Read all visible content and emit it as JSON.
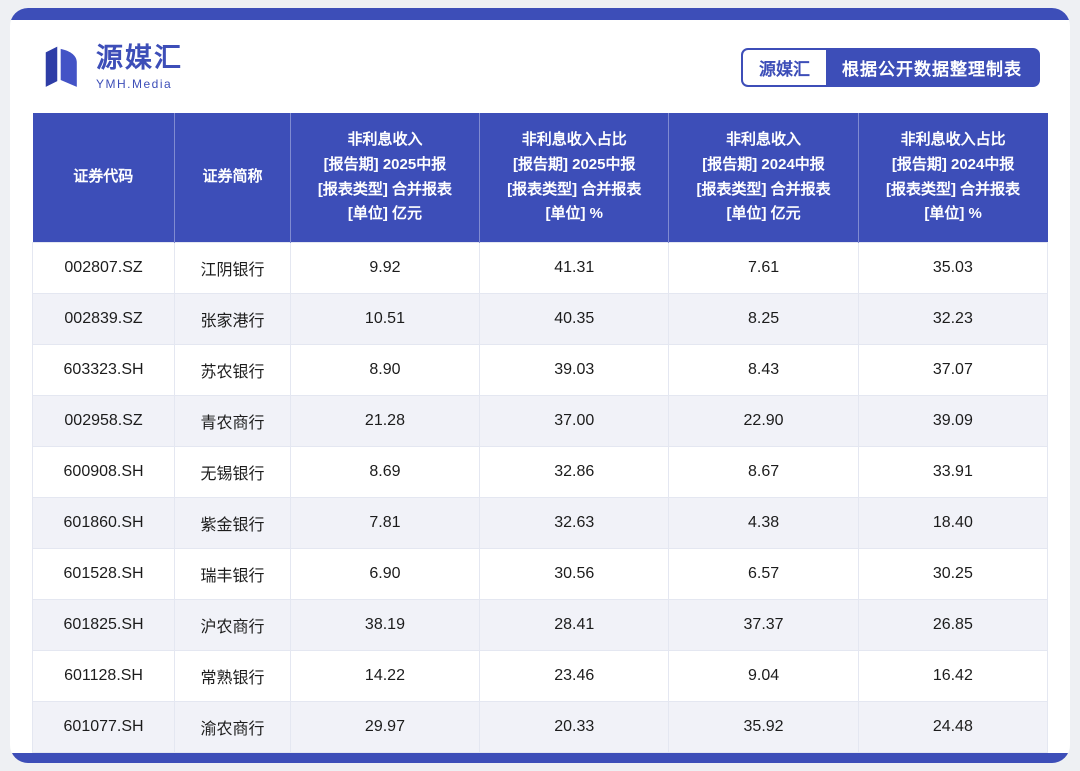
{
  "brand": {
    "name": "源媒汇",
    "subtitle": "YMH.Media"
  },
  "badge": {
    "label": "源媒汇",
    "text": "根据公开数据整理制表"
  },
  "colors": {
    "primary": "#3D4EB8",
    "row_alt": "#F1F2F8",
    "border": "#E4E7F1"
  },
  "chart_data": {
    "type": "table",
    "columns": [
      "证券代码",
      "证券简称",
      "非利息收入\n[报告期] 2025中报\n[报表类型] 合并报表\n[单位] 亿元",
      "非利息收入占比\n[报告期] 2025中报\n[报表类型] 合并报表\n[单位] %",
      "非利息收入\n[报告期] 2024中报\n[报表类型] 合并报表\n[单位] 亿元",
      "非利息收入占比\n[报告期] 2024中报\n[报表类型] 合并报表\n[单位] %"
    ],
    "rows": [
      [
        "002807.SZ",
        "江阴银行",
        "9.92",
        "41.31",
        "7.61",
        "35.03"
      ],
      [
        "002839.SZ",
        "张家港行",
        "10.51",
        "40.35",
        "8.25",
        "32.23"
      ],
      [
        "603323.SH",
        "苏农银行",
        "8.90",
        "39.03",
        "8.43",
        "37.07"
      ],
      [
        "002958.SZ",
        "青农商行",
        "21.28",
        "37.00",
        "22.90",
        "39.09"
      ],
      [
        "600908.SH",
        "无锡银行",
        "8.69",
        "32.86",
        "8.67",
        "33.91"
      ],
      [
        "601860.SH",
        "紫金银行",
        "7.81",
        "32.63",
        "4.38",
        "18.40"
      ],
      [
        "601528.SH",
        "瑞丰银行",
        "6.90",
        "30.56",
        "6.57",
        "30.25"
      ],
      [
        "601825.SH",
        "沪农商行",
        "38.19",
        "28.41",
        "37.37",
        "26.85"
      ],
      [
        "601128.SH",
        "常熟银行",
        "14.22",
        "23.46",
        "9.04",
        "16.42"
      ],
      [
        "601077.SH",
        "渝农商行",
        "29.97",
        "20.33",
        "35.92",
        "24.48"
      ]
    ]
  }
}
